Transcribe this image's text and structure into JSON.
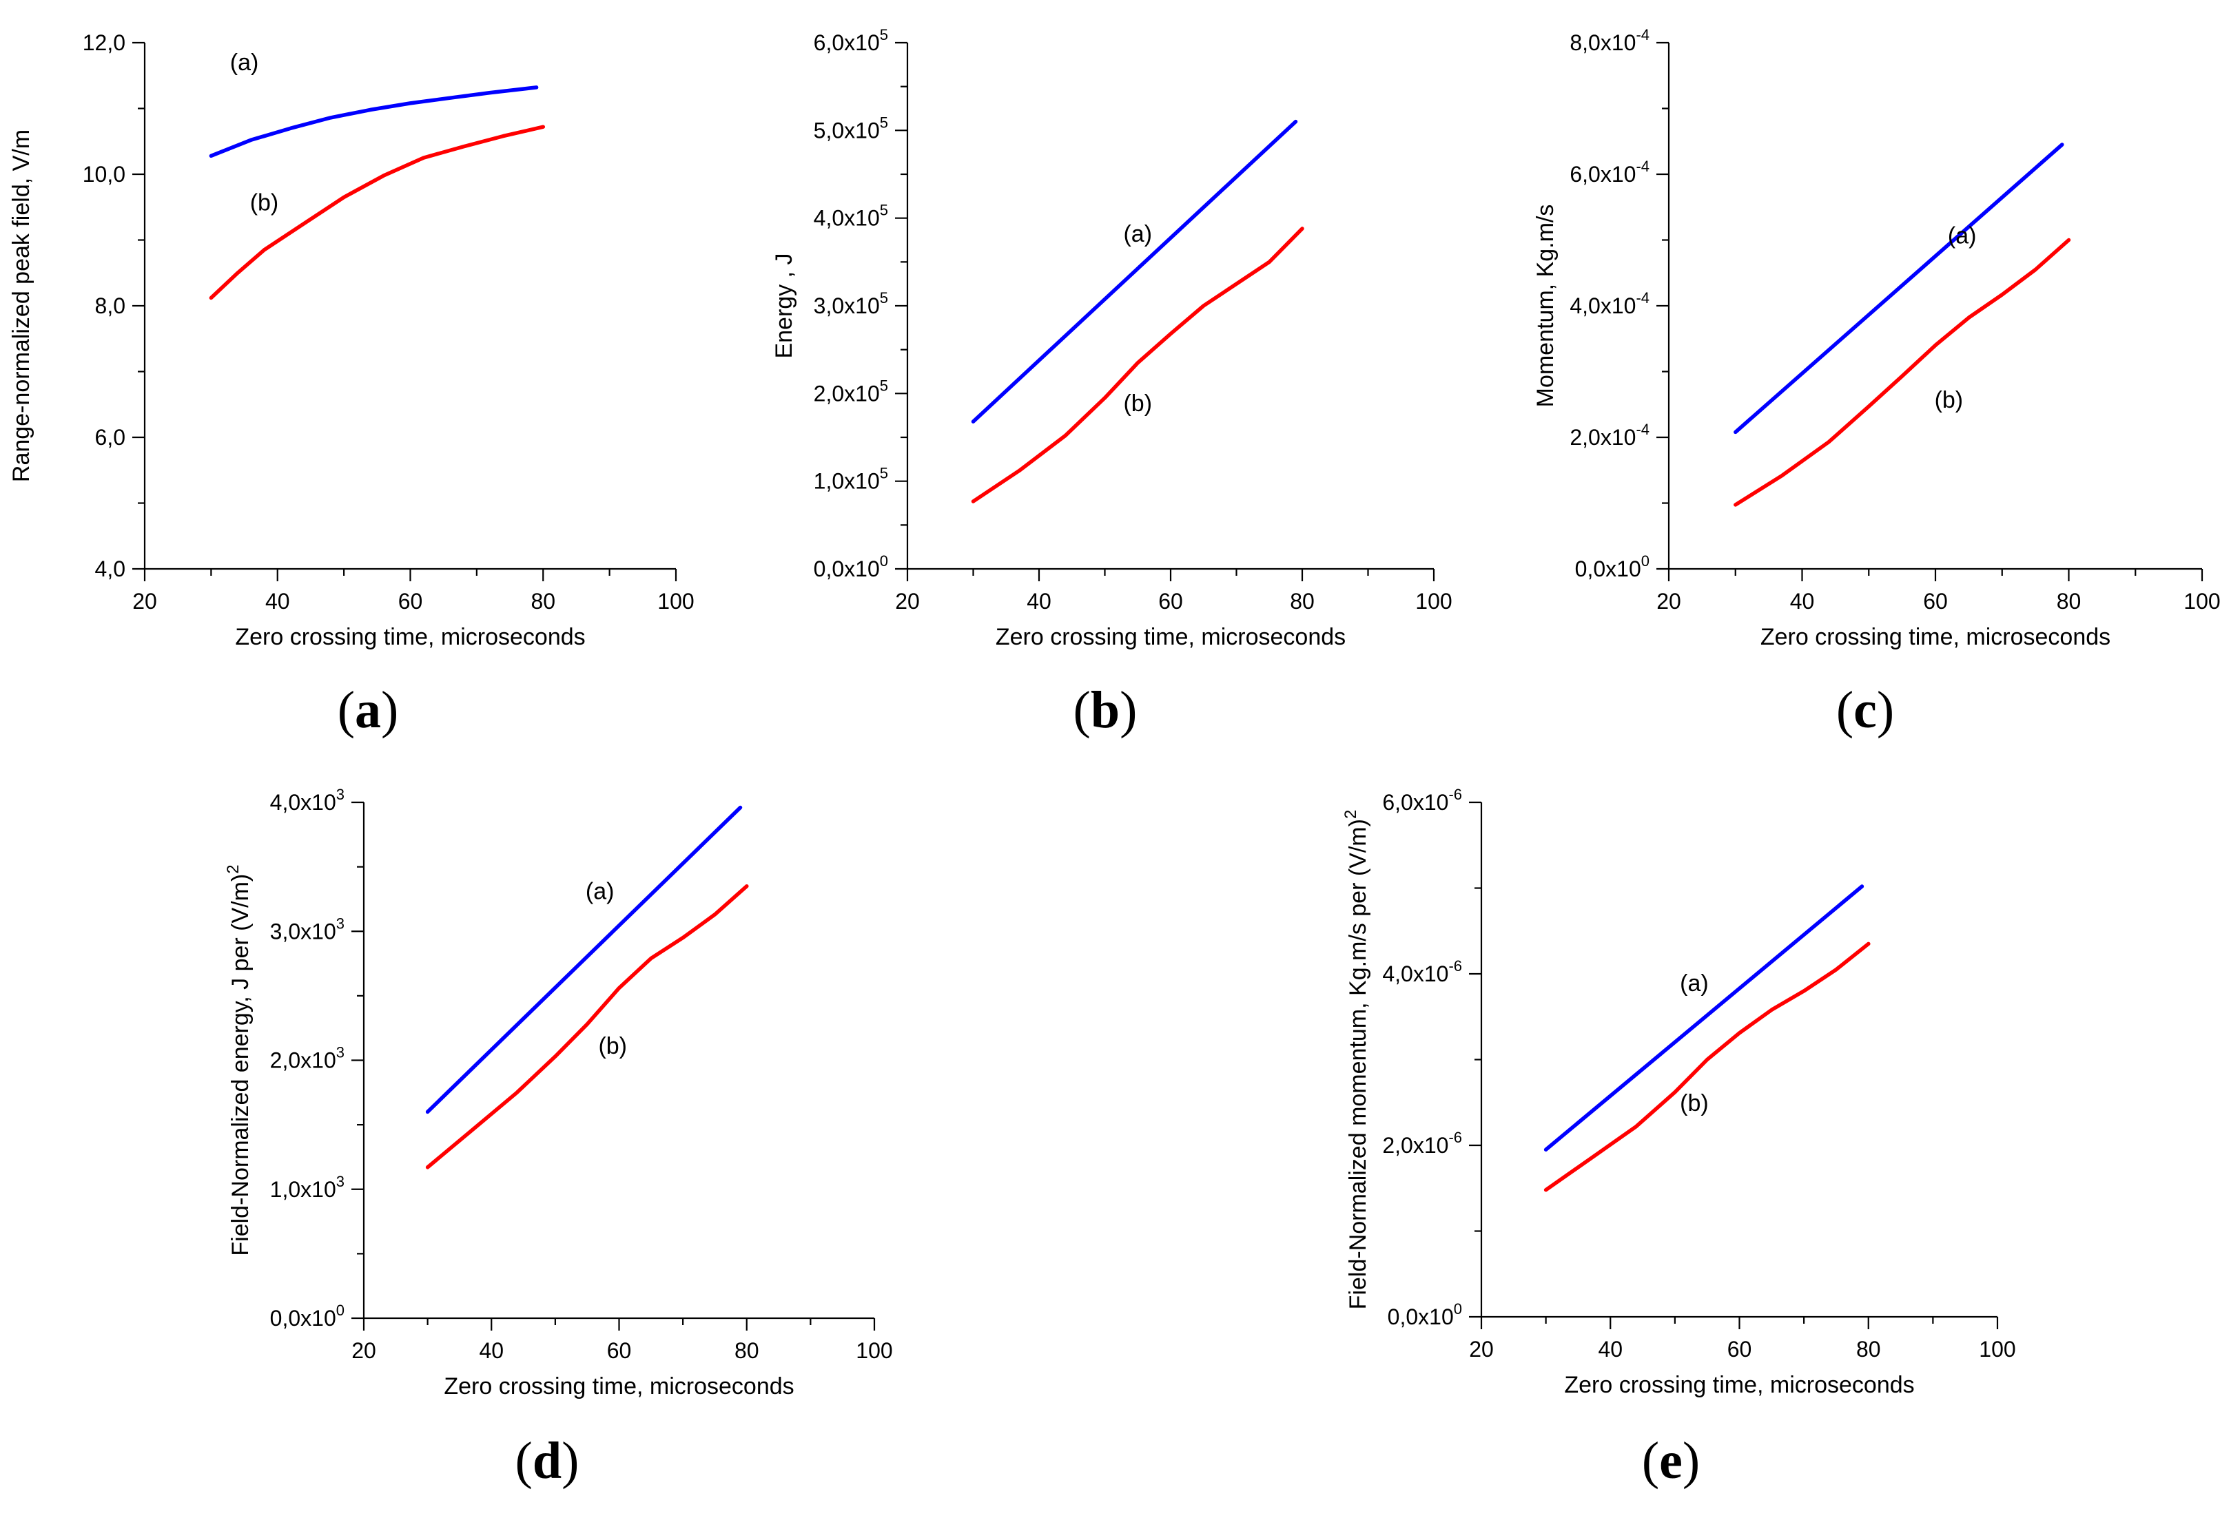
{
  "colors": {
    "series_a": "#0000ff",
    "series_b": "#ff0000",
    "axis": "#000000"
  },
  "chart_data": [
    {
      "id": "a",
      "type": "line",
      "caption": {
        "open": "(",
        "letter": "a",
        "close": ")"
      },
      "xlabel": "Zero crossing time, microseconds",
      "ylabel": "Range-normalized peak field, V/m",
      "xlim": [
        20,
        100
      ],
      "ylim": [
        4,
        12
      ],
      "xticks": [
        20,
        40,
        60,
        80,
        100
      ],
      "yticks": [
        4,
        6,
        8,
        10,
        12
      ],
      "ytick_labels": [
        {
          "mant": "4,0"
        },
        {
          "mant": "6,0"
        },
        {
          "mant": "8,0"
        },
        {
          "mant": "10,0"
        },
        {
          "mant": "12,0"
        }
      ],
      "series": [
        {
          "name": "(a)",
          "color": "#0000ff",
          "x": [
            30,
            36,
            42,
            48,
            54,
            60,
            66,
            72,
            79
          ],
          "y": [
            10.28,
            10.52,
            10.7,
            10.86,
            10.98,
            11.08,
            11.16,
            11.24,
            11.32
          ],
          "label_at": [
            35,
            11.58
          ]
        },
        {
          "name": "(b)",
          "color": "#ff0000",
          "x": [
            30,
            34,
            38,
            44,
            50,
            56,
            62,
            68,
            74,
            80
          ],
          "y": [
            8.12,
            8.5,
            8.85,
            9.25,
            9.65,
            9.98,
            10.25,
            10.42,
            10.58,
            10.72
          ],
          "label_at": [
            38,
            9.45
          ]
        }
      ]
    },
    {
      "id": "b",
      "type": "line",
      "caption": {
        "open": "(",
        "letter": "b",
        "close": ")"
      },
      "xlabel": "Zero crossing time, microseconds",
      "ylabel": "Energy , J",
      "xlim": [
        20,
        100
      ],
      "ylim": [
        0,
        600000
      ],
      "xticks": [
        20,
        40,
        60,
        80,
        100
      ],
      "yticks": [
        0,
        100000,
        200000,
        300000,
        400000,
        500000,
        600000
      ],
      "ytick_labels": [
        {
          "mant": "0,0x10",
          "exp": "0"
        },
        {
          "mant": "1,0x10",
          "exp": "5"
        },
        {
          "mant": "2,0x10",
          "exp": "5"
        },
        {
          "mant": "3,0x10",
          "exp": "5"
        },
        {
          "mant": "4,0x10",
          "exp": "5"
        },
        {
          "mant": "5,0x10",
          "exp": "5"
        },
        {
          "mant": "6,0x10",
          "exp": "5"
        }
      ],
      "series": [
        {
          "name": "(a)",
          "color": "#0000ff",
          "x": [
            30,
            79
          ],
          "y": [
            168000,
            510000
          ],
          "label_at": [
            55,
            373000
          ]
        },
        {
          "name": "(b)",
          "color": "#ff0000",
          "x": [
            30,
            37,
            44,
            50,
            55,
            60,
            65,
            70,
            75,
            80
          ],
          "y": [
            77000,
            112000,
            152000,
            195000,
            235000,
            268000,
            300000,
            325000,
            350000,
            388000
          ],
          "label_at": [
            55,
            180000
          ]
        }
      ]
    },
    {
      "id": "c",
      "type": "line",
      "caption": {
        "open": "(",
        "letter": "c",
        "close": ")"
      },
      "xlabel": "Zero crossing time, microseconds",
      "ylabel": "Momentum, Kg.m/s",
      "xlim": [
        20,
        100
      ],
      "ylim": [
        0,
        0.0008
      ],
      "xticks": [
        20,
        40,
        60,
        80,
        100
      ],
      "yticks": [
        0,
        0.0002,
        0.0004,
        0.0006,
        0.0008
      ],
      "ytick_labels": [
        {
          "mant": "0,0x10",
          "exp": "0"
        },
        {
          "mant": "2,0x10",
          "exp": "-4"
        },
        {
          "mant": "4,0x10",
          "exp": "-4"
        },
        {
          "mant": "6,0x10",
          "exp": "-4"
        },
        {
          "mant": "8,0x10",
          "exp": "-4"
        }
      ],
      "series": [
        {
          "name": "(a)",
          "color": "#0000ff",
          "x": [
            30,
            79
          ],
          "y": [
            0.000208,
            0.000645
          ],
          "label_at": [
            64,
            0.000495
          ]
        },
        {
          "name": "(b)",
          "color": "#ff0000",
          "x": [
            30,
            37,
            44,
            50,
            55,
            60,
            65,
            70,
            75,
            80
          ],
          "y": [
            9.75e-05,
            0.000142,
            0.000193,
            0.000247,
            0.000293,
            0.00034,
            0.000382,
            0.000417,
            0.000455,
            0.0005
          ],
          "label_at": [
            62,
            0.000245
          ]
        }
      ]
    },
    {
      "id": "d",
      "type": "line",
      "caption": {
        "open": "(",
        "letter": "d",
        "close": ")"
      },
      "xlabel": "Zero crossing time, microseconds",
      "ylabel": "Field-Normalized energy, J per (V/m)",
      "ylabel_sup": "2",
      "xlim": [
        20,
        100
      ],
      "ylim": [
        0,
        4000
      ],
      "xticks": [
        20,
        40,
        60,
        80,
        100
      ],
      "yticks": [
        0,
        1000,
        2000,
        3000,
        4000
      ],
      "ytick_labels": [
        {
          "mant": "0,0x10",
          "exp": "0"
        },
        {
          "mant": "1,0x10",
          "exp": "3"
        },
        {
          "mant": "2,0x10",
          "exp": "3"
        },
        {
          "mant": "3,0x10",
          "exp": "3"
        },
        {
          "mant": "4,0x10",
          "exp": "3"
        }
      ],
      "series": [
        {
          "name": "(a)",
          "color": "#0000ff",
          "x": [
            30,
            79
          ],
          "y": [
            1600,
            3960
          ],
          "label_at": [
            57,
            3250
          ]
        },
        {
          "name": "(b)",
          "color": "#ff0000",
          "x": [
            30,
            37,
            44,
            50,
            55,
            60,
            65,
            70,
            75,
            80
          ],
          "y": [
            1170,
            1460,
            1750,
            2030,
            2280,
            2560,
            2790,
            2950,
            3130,
            3350
          ],
          "label_at": [
            59,
            2050
          ]
        }
      ]
    },
    {
      "id": "e",
      "type": "line",
      "caption": {
        "open": "(",
        "letter": "e",
        "close": ")"
      },
      "xlabel": "Zero crossing time, microseconds",
      "ylabel": "Field-Normalized momentum, Kg.m/s per (V/m)",
      "ylabel_sup": "2",
      "xlim": [
        20,
        100
      ],
      "ylim": [
        0,
        6e-06
      ],
      "xticks": [
        20,
        40,
        60,
        80,
        100
      ],
      "yticks": [
        0,
        2e-06,
        4e-06,
        6e-06
      ],
      "ytick_labels": [
        {
          "mant": "0,0x10",
          "exp": "0"
        },
        {
          "mant": "2,0x10",
          "exp": "-6"
        },
        {
          "mant": "4,0x10",
          "exp": "-6"
        },
        {
          "mant": "6,0x10",
          "exp": "-6"
        }
      ],
      "series": [
        {
          "name": "(a)",
          "color": "#0000ff",
          "x": [
            30,
            79
          ],
          "y": [
            1.95e-06,
            5.02e-06
          ],
          "label_at": [
            53,
            3.8e-06
          ]
        },
        {
          "name": "(b)",
          "color": "#ff0000",
          "x": [
            30,
            37,
            44,
            50,
            55,
            60,
            65,
            70,
            75,
            80
          ],
          "y": [
            1.48e-06,
            1.85e-06,
            2.22e-06,
            2.62e-06,
            3e-06,
            3.31e-06,
            3.58e-06,
            3.8e-06,
            4.05e-06,
            4.35e-06
          ],
          "label_at": [
            53,
            2.4e-06
          ]
        }
      ]
    }
  ]
}
